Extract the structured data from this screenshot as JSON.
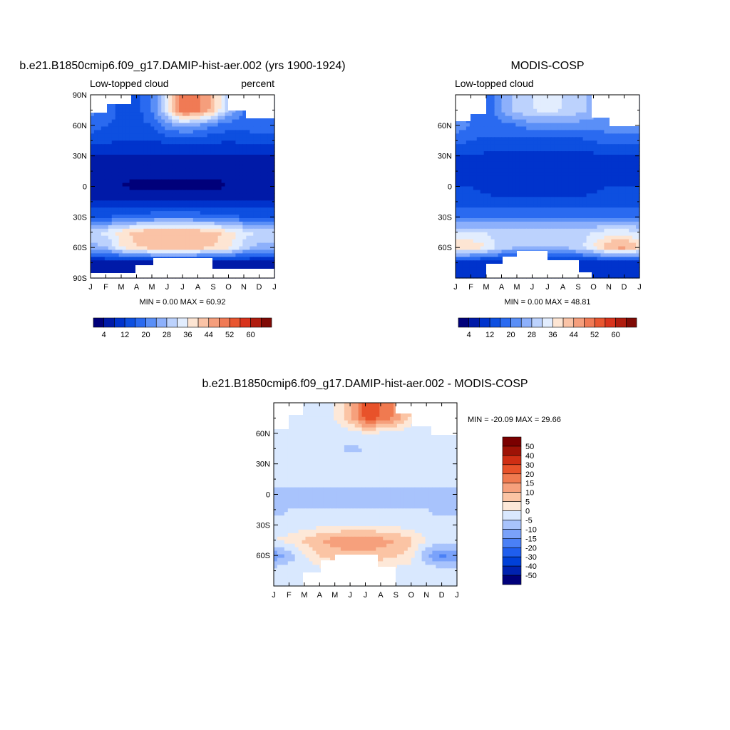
{
  "months": [
    "J",
    "F",
    "M",
    "A",
    "M",
    "J",
    "J",
    "A",
    "S",
    "O",
    "N",
    "D",
    "J"
  ],
  "panels": [
    {
      "id": "model",
      "title": "b.e21.B1850cmip6.f09_g17.DAMIP-hist-aer.002 (yrs 1900-1924)",
      "left_label": "Low-topped cloud",
      "right_label": "percent",
      "yticks": [
        "90N",
        "60N",
        "30N",
        "0",
        "30S",
        "60S",
        "90S"
      ],
      "min_max": "MIN =   0.00 MAX =  60.92",
      "colorbar_labels": [
        "4",
        "12",
        "20",
        "28",
        "36",
        "44",
        "52",
        "60"
      ]
    },
    {
      "id": "obs",
      "title": "MODIS-COSP",
      "left_label": "Low-topped cloud",
      "right_label": "",
      "yticks": [
        "60N",
        "30N",
        "0",
        "30S",
        "60S"
      ],
      "min_max": "MIN =   0.00 MAX =  48.81",
      "colorbar_labels": [
        "4",
        "12",
        "20",
        "28",
        "36",
        "44",
        "52",
        "60"
      ]
    },
    {
      "id": "diff",
      "title": "b.e21.B1850cmip6.f09_g17.DAMIP-hist-aer.002 - MODIS-COSP",
      "yticks": [
        "60N",
        "30N",
        "0",
        "30S",
        "60S"
      ],
      "min_max": "MIN = -20.09 MAX =  29.66",
      "colorbar_labels": [
        "50",
        "40",
        "30",
        "20",
        "15",
        "10",
        "5",
        "0",
        "-5",
        "-10",
        "-15",
        "-20",
        "-30",
        "-40",
        "-50"
      ]
    }
  ],
  "chart_data": [
    {
      "type": "heatmap",
      "title": "b.e21.B1850cmip6.f09_g17.DAMIP-hist-aer.002 (yrs 1900-1924)",
      "xlabel": "",
      "ylabel": "",
      "variable": "Low-topped cloud",
      "units": "percent",
      "x": [
        "J",
        "F",
        "M",
        "A",
        "M",
        "J",
        "J",
        "A",
        "S",
        "O",
        "N",
        "D",
        "J"
      ],
      "y_lat": [
        75,
        60,
        45,
        30,
        15,
        0,
        -15,
        -30,
        -45,
        -60,
        -75
      ],
      "values_by_lat": [
        [
          22,
          18,
          15,
          14,
          20,
          34,
          52,
          50,
          42,
          28,
          20,
          20,
          22
        ],
        [
          18,
          16,
          15,
          15,
          16,
          22,
          26,
          24,
          20,
          18,
          18,
          18,
          18
        ],
        [
          14,
          13,
          12,
          12,
          12,
          13,
          14,
          14,
          13,
          12,
          13,
          14,
          14
        ],
        [
          8,
          8,
          8,
          8,
          8,
          8,
          8,
          8,
          8,
          8,
          8,
          8,
          8
        ],
        [
          6,
          6,
          5,
          5,
          5,
          5,
          5,
          5,
          5,
          5,
          6,
          6,
          6
        ],
        [
          5,
          5,
          4,
          3,
          3,
          3,
          3,
          3,
          3,
          4,
          4,
          5,
          5
        ],
        [
          8,
          8,
          8,
          8,
          8,
          8,
          8,
          8,
          8,
          8,
          8,
          8,
          8
        ],
        [
          16,
          16,
          17,
          18,
          19,
          20,
          20,
          19,
          18,
          17,
          16,
          16,
          16
        ],
        [
          32,
          33,
          38,
          42,
          44,
          44,
          44,
          43,
          42,
          38,
          34,
          32,
          32
        ],
        [
          26,
          28,
          36,
          40,
          42,
          42,
          42,
          42,
          40,
          38,
          30,
          26,
          26
        ],
        [
          6,
          6,
          6,
          6,
          6,
          6,
          6,
          6,
          6,
          6,
          6,
          6,
          6
        ]
      ],
      "ylim": [
        -90,
        90
      ],
      "min": 0.0,
      "max": 60.92,
      "levels": [
        4,
        8,
        12,
        16,
        20,
        24,
        28,
        32,
        36,
        40,
        44,
        48,
        52,
        56,
        60
      ]
    },
    {
      "type": "heatmap",
      "title": "MODIS-COSP",
      "xlabel": "",
      "ylabel": "",
      "variable": "Low-topped cloud",
      "x": [
        "J",
        "F",
        "M",
        "A",
        "M",
        "J",
        "J",
        "A",
        "S",
        "O",
        "N",
        "D",
        "J"
      ],
      "y_lat": [
        75,
        60,
        45,
        30,
        15,
        0,
        -15,
        -30,
        -45,
        -60,
        -75
      ],
      "values_by_lat": [
        [
          20,
          18,
          16,
          25,
          30,
          32,
          34,
          32,
          30,
          26,
          24,
          22,
          20
        ],
        [
          22,
          20,
          18,
          18,
          20,
          22,
          22,
          22,
          22,
          22,
          22,
          22,
          22
        ],
        [
          18,
          16,
          15,
          15,
          15,
          15,
          15,
          15,
          15,
          16,
          18,
          18,
          18
        ],
        [
          12,
          12,
          11,
          11,
          11,
          11,
          11,
          11,
          11,
          11,
          12,
          12,
          12
        ],
        [
          10,
          10,
          9,
          9,
          9,
          9,
          9,
          9,
          9,
          10,
          10,
          10,
          10
        ],
        [
          12,
          12,
          11,
          10,
          10,
          10,
          10,
          10,
          10,
          11,
          12,
          12,
          12
        ],
        [
          14,
          14,
          13,
          13,
          13,
          13,
          13,
          13,
          13,
          13,
          14,
          14,
          14
        ],
        [
          20,
          20,
          20,
          20,
          20,
          20,
          20,
          20,
          20,
          20,
          20,
          20,
          20
        ],
        [
          32,
          32,
          32,
          30,
          30,
          30,
          30,
          30,
          30,
          32,
          34,
          34,
          32
        ],
        [
          40,
          40,
          36,
          30,
          28,
          28,
          28,
          28,
          30,
          36,
          44,
          46,
          40
        ],
        [
          8,
          8,
          8,
          8,
          8,
          8,
          8,
          8,
          8,
          8,
          8,
          8,
          8
        ]
      ],
      "ylim": [
        -90,
        90
      ],
      "min": 0.0,
      "max": 48.81,
      "levels": [
        4,
        8,
        12,
        16,
        20,
        24,
        28,
        32,
        36,
        40,
        44,
        48,
        52,
        56,
        60
      ]
    },
    {
      "type": "heatmap",
      "title": "b.e21.B1850cmip6.f09_g17.DAMIP-hist-aer.002 - MODIS-COSP",
      "xlabel": "",
      "ylabel": "",
      "x": [
        "J",
        "F",
        "M",
        "A",
        "M",
        "J",
        "J",
        "A",
        "S",
        "O",
        "N",
        "D",
        "J"
      ],
      "y_lat": [
        75,
        60,
        45,
        30,
        15,
        0,
        -15,
        -30,
        -45,
        -60,
        -75
      ],
      "values_by_lat": [
        [
          2,
          0,
          -1,
          -2,
          0,
          8,
          22,
          20,
          14,
          4,
          -2,
          -2,
          2
        ],
        [
          -3,
          -4,
          -3,
          -3,
          -4,
          -2,
          0,
          -1,
          -2,
          -4,
          -4,
          -4,
          -3
        ],
        [
          -4,
          -3,
          -3,
          -3,
          -4,
          -6,
          -5,
          -4,
          -3,
          -4,
          -5,
          -4,
          -4
        ],
        [
          -4,
          -4,
          -3,
          -3,
          -3,
          -3,
          -3,
          -3,
          -3,
          -3,
          -4,
          -4,
          -4
        ],
        [
          -4,
          -4,
          -4,
          -4,
          -4,
          -4,
          -4,
          -4,
          -4,
          -4,
          -4,
          -4,
          -4
        ],
        [
          -6,
          -6,
          -6,
          -6,
          -6,
          -6,
          -6,
          -6,
          -6,
          -6,
          -6,
          -6,
          -6
        ],
        [
          -6,
          -5,
          -5,
          -5,
          -5,
          -5,
          -5,
          -5,
          -5,
          -5,
          -5,
          -6,
          -6
        ],
        [
          -4,
          -4,
          -3,
          -2,
          -1,
          0,
          0,
          -1,
          -2,
          -3,
          -4,
          -4,
          -4
        ],
        [
          0,
          2,
          6,
          10,
          12,
          14,
          14,
          12,
          10,
          6,
          0,
          -2,
          0
        ],
        [
          -14,
          -8,
          -1,
          6,
          8,
          8,
          8,
          8,
          6,
          2,
          -10,
          -16,
          -14
        ],
        [
          -2,
          -2,
          -2,
          -2,
          -2,
          -2,
          -2,
          -2,
          -2,
          -2,
          -2,
          -2,
          -2
        ]
      ],
      "ylim": [
        -90,
        90
      ],
      "min": -20.09,
      "max": 29.66,
      "levels": [
        -50,
        -40,
        -30,
        -20,
        -15,
        -10,
        -5,
        0,
        5,
        10,
        15,
        20,
        30,
        40,
        50
      ]
    }
  ],
  "colors": {
    "abs_palette": [
      "#00007a",
      "#001aa8",
      "#0033cc",
      "#0d4fe0",
      "#2a6af0",
      "#5a8ff7",
      "#8db0fb",
      "#bcd2fd",
      "#e2edfe",
      "#fde5d3",
      "#fac3a6",
      "#f59e7c",
      "#f07a55",
      "#e85630",
      "#d8331c",
      "#b01c0e",
      "#7f0a05"
    ],
    "diff_palette": [
      "#00007a",
      "#0022b0",
      "#0040d8",
      "#1f5eee",
      "#4a80f6",
      "#7aa2fa",
      "#a8c3fc",
      "#d9e8fe",
      "#fde8d8",
      "#fbc4a4",
      "#f6a07c",
      "#f07a50",
      "#e8522a",
      "#cf2e14",
      "#9e1206",
      "#7a0000"
    ]
  }
}
